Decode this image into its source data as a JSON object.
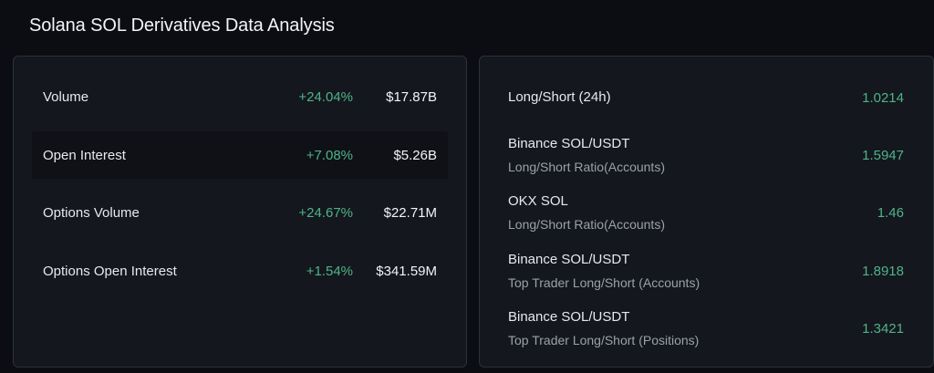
{
  "title": "Solana SOL Derivatives Data Analysis",
  "colors": {
    "background": "#0b0d12",
    "card": "#14171d",
    "border": "#2c3038",
    "positive": "#4fb389",
    "muted": "#9aa1ab"
  },
  "metrics": [
    {
      "label": "Volume",
      "change": "+24.04%",
      "value": "$17.87B"
    },
    {
      "label": "Open Interest",
      "change": "+7.08%",
      "value": "$5.26B"
    },
    {
      "label": "Options Volume",
      "change": "+24.67%",
      "value": "$22.71M"
    },
    {
      "label": "Options Open Interest",
      "change": "+1.54%",
      "value": "$341.59M"
    }
  ],
  "ratios": [
    {
      "name": "Long/Short (24h)",
      "sub": "",
      "value": "1.0214"
    },
    {
      "name": "Binance SOL/USDT",
      "sub": "Long/Short Ratio(Accounts)",
      "value": "1.5947"
    },
    {
      "name": "OKX SOL",
      "sub": "Long/Short Ratio(Accounts)",
      "value": "1.46"
    },
    {
      "name": "Binance SOL/USDT",
      "sub": "Top Trader Long/Short (Accounts)",
      "value": "1.8918"
    },
    {
      "name": "Binance SOL/USDT",
      "sub": "Top Trader Long/Short (Positions)",
      "value": "1.3421"
    }
  ]
}
